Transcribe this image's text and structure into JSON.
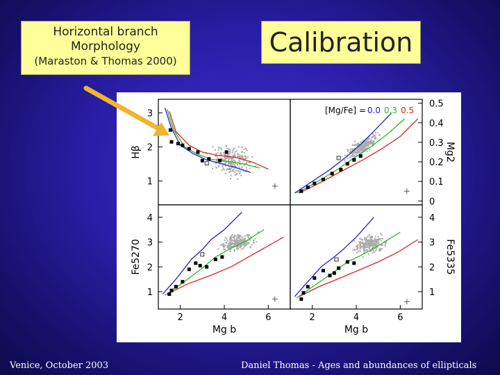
{
  "slide": {
    "hb_title_line1": "Horizontal branch",
    "hb_title_line2": "Morphology",
    "hb_citation": "(Maraston & Thomas 2000)",
    "title": "Calibration",
    "footer_left": "Venice, October 2003",
    "footer_right": "Daniel Thomas - Ages and abundances of ellipticals"
  },
  "colors": {
    "arrow": "#f0b430",
    "mgfe_0_0": "#2222cc",
    "mgfe_0_3": "#22bb22",
    "mgfe_0_5": "#dd2222",
    "data_points": "#aaaaaa"
  },
  "chart_data": [
    {
      "type": "line",
      "panel": "top-left",
      "xlabel": "",
      "ylabel": "Hβ",
      "xlim": [
        1,
        7
      ],
      "ylim": [
        0.3,
        3.4
      ],
      "y_ticks": [
        "1",
        "2",
        "3"
      ],
      "series": [
        {
          "mgfe": "0.0",
          "color": "#2222cc",
          "x": [
            1.3,
            1.6,
            2.0,
            2.6,
            3.2,
            3.8,
            4.5,
            5.2
          ],
          "y": [
            3.15,
            2.55,
            2.05,
            1.8,
            1.62,
            1.52,
            1.4,
            1.25
          ]
        },
        {
          "mgfe": "0.3",
          "color": "#22bb22",
          "x": [
            1.4,
            1.7,
            2.2,
            2.8,
            3.4,
            4.1,
            4.9,
            5.6
          ],
          "y": [
            3.1,
            2.5,
            2.0,
            1.78,
            1.64,
            1.58,
            1.5,
            1.38
          ]
        },
        {
          "mgfe": "0.5",
          "color": "#dd2222",
          "x": [
            1.5,
            1.8,
            2.4,
            3.0,
            3.7,
            4.5,
            5.3,
            6.0
          ],
          "y": [
            3.05,
            2.45,
            2.05,
            1.85,
            1.75,
            1.7,
            1.55,
            1.35
          ]
        }
      ],
      "globular_clusters": {
        "x": [
          1.55,
          1.6,
          1.9,
          2.1,
          2.4,
          2.8,
          3.0,
          3.3,
          3.8,
          4.1
        ],
        "y": [
          2.5,
          2.15,
          2.1,
          2.05,
          1.95,
          1.85,
          1.6,
          1.65,
          1.6,
          1.85
        ]
      },
      "open_symbol": {
        "x": [
          3.2
        ],
        "y": [
          1.52
        ]
      },
      "error_bar": {
        "x": 6.3,
        "y": 0.85
      }
    },
    {
      "type": "line",
      "panel": "top-right",
      "xlabel": "",
      "ylabel": "Mg2",
      "xlim": [
        1,
        7
      ],
      "ylim": [
        -0.02,
        0.52
      ],
      "y_ticks": [
        "0",
        "0.1",
        "0.2",
        "0.3",
        "0.4",
        "0.5"
      ],
      "legend_prefix": "[Mg/Fe] =",
      "legend_values": [
        "0.0",
        "0.3",
        "0.5"
      ],
      "series": [
        {
          "mgfe": "0.0",
          "color": "#2222cc",
          "x": [
            1.2,
            2.0,
            2.8,
            3.6,
            4.3,
            5.0,
            5.6
          ],
          "y": [
            0.04,
            0.1,
            0.16,
            0.23,
            0.3,
            0.38,
            0.45
          ]
        },
        {
          "mgfe": "0.3",
          "color": "#22bb22",
          "x": [
            1.3,
            2.1,
            3.0,
            3.9,
            4.7,
            5.5,
            6.2
          ],
          "y": [
            0.04,
            0.09,
            0.15,
            0.22,
            0.28,
            0.35,
            0.42
          ]
        },
        {
          "mgfe": "0.5",
          "color": "#dd2222",
          "x": [
            1.4,
            2.3,
            3.3,
            4.3,
            5.2,
            6.0,
            6.8
          ],
          "y": [
            0.04,
            0.09,
            0.15,
            0.21,
            0.27,
            0.33,
            0.42
          ]
        }
      ],
      "globular_clusters": {
        "x": [
          1.5,
          1.8,
          2.1,
          2.5,
          2.9,
          3.3,
          3.6,
          3.9,
          4.2
        ],
        "y": [
          0.05,
          0.07,
          0.09,
          0.11,
          0.14,
          0.16,
          0.19,
          0.21,
          0.23
        ]
      },
      "open_symbol": {
        "x": [
          3.2
        ],
        "y": [
          0.22
        ]
      },
      "error_bar": {
        "x": 6.3,
        "y": 0.05
      }
    },
    {
      "type": "line",
      "panel": "bottom-left",
      "xlabel": "Mg b",
      "ylabel": "Fe5270",
      "xlim": [
        1,
        7
      ],
      "ylim": [
        0.3,
        4.5
      ],
      "x_ticks": [
        "2",
        "4",
        "6"
      ],
      "y_ticks": [
        "1",
        "2",
        "3",
        "4"
      ],
      "series": [
        {
          "mgfe": "0.0",
          "color": "#2222cc",
          "x": [
            1.2,
            1.8,
            2.5,
            3.0,
            3.4,
            4.0,
            4.8
          ],
          "y": [
            0.9,
            1.5,
            2.3,
            2.7,
            3.1,
            3.5,
            4.2
          ]
        },
        {
          "mgfe": "0.3",
          "color": "#22bb22",
          "x": [
            1.3,
            2.1,
            3.0,
            3.6,
            4.2,
            5.0,
            5.8
          ],
          "y": [
            0.85,
            1.35,
            1.95,
            2.4,
            2.7,
            3.05,
            3.5
          ]
        },
        {
          "mgfe": "0.5",
          "color": "#dd2222",
          "x": [
            1.4,
            2.3,
            3.5,
            4.3,
            5.0,
            5.8,
            6.7
          ],
          "y": [
            0.9,
            1.3,
            1.7,
            2.0,
            2.35,
            2.75,
            3.2
          ]
        }
      ],
      "globular_clusters": {
        "x": [
          1.5,
          1.6,
          1.8,
          2.1,
          2.4,
          2.7,
          2.9,
          3.2,
          3.6,
          3.9
        ],
        "y": [
          0.9,
          1.05,
          1.2,
          1.4,
          1.9,
          2.15,
          2.05,
          2.0,
          2.3,
          2.4
        ]
      },
      "open_symbol": {
        "x": [
          3.0
        ],
        "y": [
          2.5
        ]
      },
      "error_bar": {
        "x": 6.3,
        "y": 0.7
      }
    },
    {
      "type": "line",
      "panel": "bottom-right",
      "xlabel": "Mg b",
      "ylabel": "Fe5335",
      "xlim": [
        1,
        7
      ],
      "ylim": [
        0.3,
        4.5
      ],
      "x_ticks": [
        "2",
        "4",
        "6"
      ],
      "y_ticks": [
        "1",
        "2",
        "3",
        "4"
      ],
      "series": [
        {
          "mgfe": "0.0",
          "color": "#2222cc",
          "x": [
            1.2,
            1.8,
            2.4,
            3.0,
            3.4,
            4.0,
            4.8
          ],
          "y": [
            0.8,
            1.4,
            2.0,
            2.4,
            2.7,
            3.2,
            4.0
          ]
        },
        {
          "mgfe": "0.3",
          "color": "#22bb22",
          "x": [
            1.3,
            2.1,
            3.0,
            3.6,
            4.3,
            5.1,
            6.0
          ],
          "y": [
            0.75,
            1.25,
            1.8,
            2.2,
            2.5,
            2.9,
            3.4
          ]
        },
        {
          "mgfe": "0.5",
          "color": "#dd2222",
          "x": [
            1.4,
            2.3,
            3.4,
            4.2,
            5.0,
            5.9,
            6.8
          ],
          "y": [
            0.8,
            1.2,
            1.6,
            1.9,
            2.2,
            2.6,
            3.1
          ]
        }
      ],
      "globular_clusters": {
        "x": [
          1.5,
          1.6,
          1.8,
          2.1,
          2.5,
          2.8,
          3.0,
          3.2,
          3.6,
          3.9
        ],
        "y": [
          0.7,
          0.95,
          1.2,
          1.55,
          1.85,
          1.65,
          1.75,
          1.95,
          2.2,
          2.15
        ]
      },
      "open_symbol": {
        "x": [
          3.1
        ],
        "y": [
          2.3
        ]
      },
      "error_bar": {
        "x": 6.3,
        "y": 0.6
      }
    }
  ]
}
